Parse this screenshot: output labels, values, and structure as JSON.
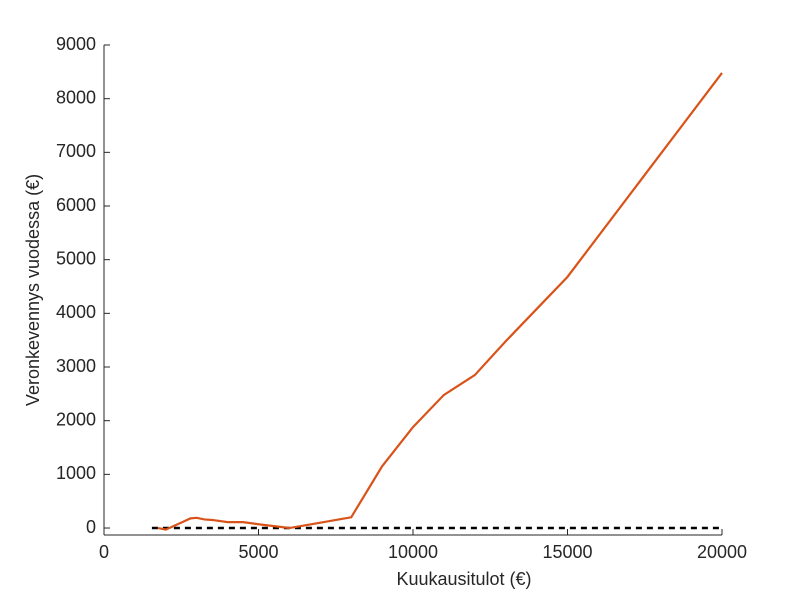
{
  "chart_data": {
    "type": "line",
    "xlabel": "Kuukausitulot (€)",
    "ylabel": "Veronkevennys vuodessa (€)",
    "x": [
      1750,
      2000,
      2500,
      2800,
      3000,
      3250,
      3500,
      4000,
      4500,
      5000,
      6000,
      7000,
      8000,
      9000,
      10000,
      11000,
      12000,
      13000,
      14000,
      15000,
      20000
    ],
    "series": [
      {
        "color": "#d95319",
        "values": [
          0,
          -30,
          100,
          180,
          190,
          160,
          150,
          110,
          110,
          70,
          0,
          100,
          200,
          1150,
          1880,
          2480,
          2850,
          3480,
          4080,
          4680,
          8480
        ]
      }
    ],
    "reference_line": {
      "y": 0,
      "x": [
        1550,
        20000
      ],
      "color": "#000000",
      "dashed": true
    },
    "xlim": [
      0,
      20000
    ],
    "xticks": [
      0,
      5000,
      10000,
      15000,
      20000
    ],
    "ylim": [
      -130,
      9000
    ],
    "yticks": [
      0,
      1000,
      2000,
      3000,
      4000,
      5000,
      6000,
      7000,
      8000,
      9000
    ],
    "grid": false
  }
}
